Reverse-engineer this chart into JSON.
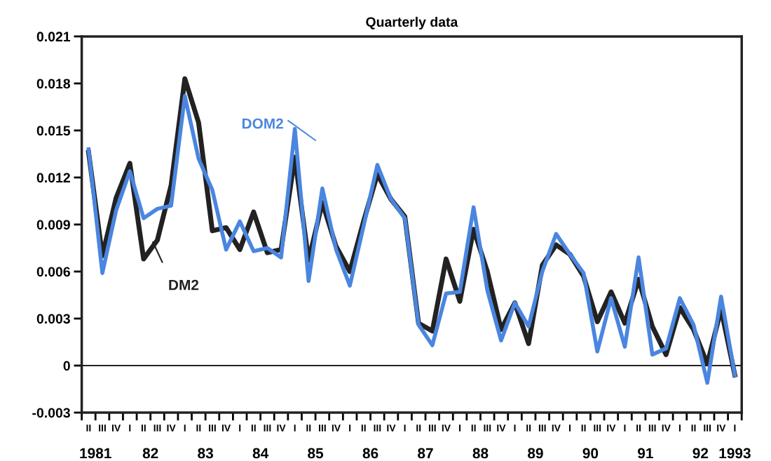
{
  "chart_data": {
    "type": "line",
    "title": "Quarterly data",
    "categories": [
      "II",
      "III",
      "IV",
      "I",
      "II",
      "III",
      "IV",
      "I",
      "II",
      "III",
      "IV",
      "I",
      "II",
      "III",
      "IV",
      "I",
      "II",
      "III",
      "IV",
      "I",
      "II",
      "III",
      "IV",
      "I",
      "II",
      "III",
      "IV",
      "I",
      "II",
      "III",
      "IV",
      "I",
      "II",
      "III",
      "IV",
      "I",
      "II",
      "III",
      "IV",
      "I",
      "II",
      "III",
      "IV",
      "I",
      "II",
      "III",
      "IV",
      "I"
    ],
    "series": [
      {
        "name": "DM2",
        "color": "#222222",
        "values": [
          0.0136,
          0.007,
          0.0107,
          0.0129,
          0.0068,
          0.008,
          0.0115,
          0.0183,
          0.0155,
          0.0086,
          0.0088,
          0.0074,
          0.0098,
          0.0072,
          0.0074,
          0.0133,
          0.0067,
          0.0104,
          0.0076,
          0.006,
          0.0092,
          0.0122,
          0.0106,
          0.0095,
          0.0027,
          0.0022,
          0.0068,
          0.0041,
          0.0087,
          0.006,
          0.0023,
          0.004,
          0.0014,
          0.0064,
          0.0077,
          0.0071,
          0.0057,
          0.0028,
          0.0047,
          0.0027,
          0.0055,
          0.0025,
          0.0007,
          0.0037,
          0.0023,
          0.0001,
          0.0036,
          -0.0006
        ]
      },
      {
        "name": "DOM2",
        "color": "#4a86e0",
        "values": [
          0.0138,
          0.0059,
          0.0099,
          0.0124,
          0.0094,
          0.01,
          0.0102,
          0.0172,
          0.0132,
          0.0112,
          0.0074,
          0.0092,
          0.0073,
          0.0075,
          0.0069,
          0.0151,
          0.0054,
          0.0113,
          0.0074,
          0.0051,
          0.0089,
          0.0128,
          0.0106,
          0.0094,
          0.0026,
          0.0013,
          0.0046,
          0.0047,
          0.0101,
          0.0048,
          0.0016,
          0.004,
          0.0025,
          0.006,
          0.0084,
          0.0071,
          0.0059,
          0.0009,
          0.0043,
          0.0012,
          0.0069,
          0.0007,
          0.0011,
          0.0043,
          0.0026,
          -0.0011,
          0.0044,
          -0.0006
        ]
      }
    ],
    "ylim": [
      -0.003,
      0.021
    ],
    "yticks": [
      -0.003,
      0,
      0.003,
      0.006,
      0.009,
      0.012,
      0.015,
      0.018,
      0.021
    ],
    "ref_lines": [
      {
        "axis": "y",
        "value": 0,
        "color": "#222222"
      }
    ],
    "annotations": [
      "1981",
      "82",
      "83",
      "84",
      "85",
      "86",
      "87",
      "88",
      "89",
      "90",
      "91",
      "92",
      "1993"
    ],
    "grid": false,
    "line_style": "solid",
    "marker": "none"
  }
}
